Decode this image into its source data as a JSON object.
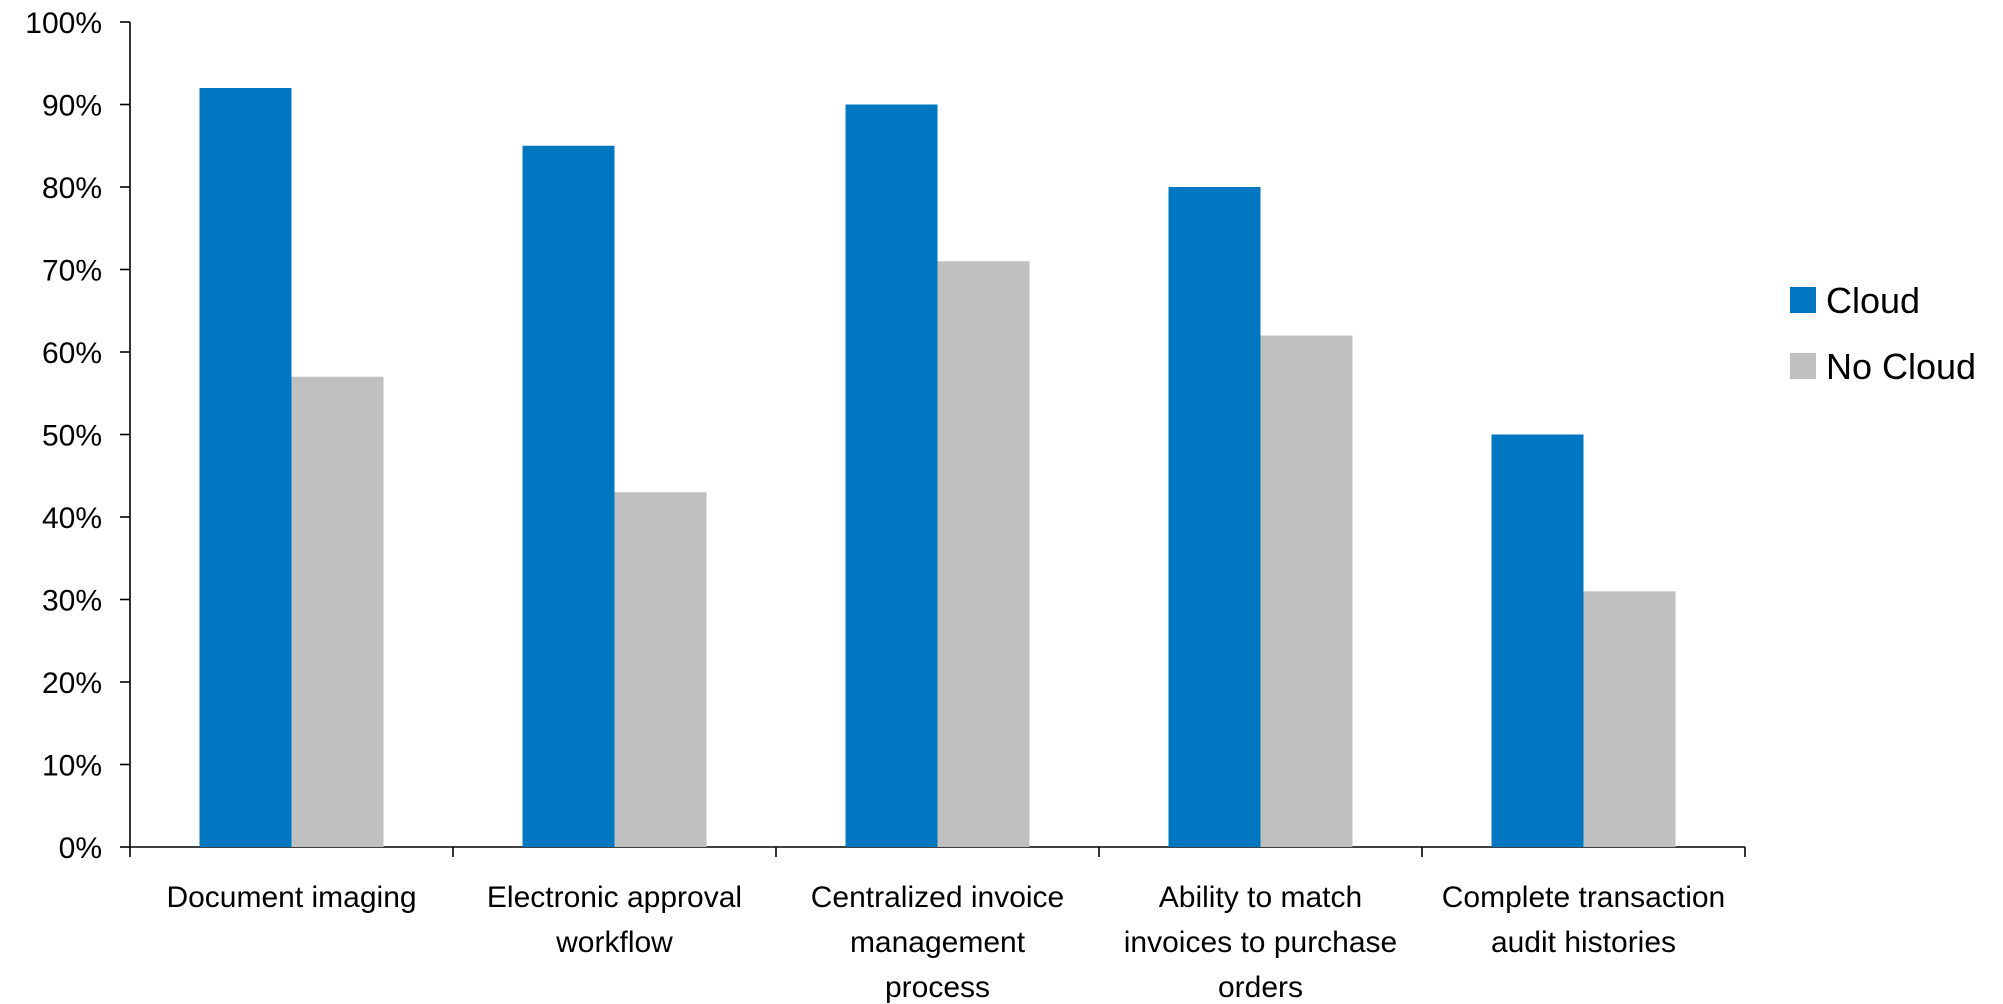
{
  "chart_data": {
    "type": "bar",
    "categories": [
      [
        "Document imaging"
      ],
      [
        "Electronic approval",
        "workflow"
      ],
      [
        "Centralized invoice",
        "management",
        "process"
      ],
      [
        "Ability to match",
        "invoices to purchase",
        "orders"
      ],
      [
        "Complete transaction",
        "audit histories"
      ]
    ],
    "series": [
      {
        "name": "Cloud",
        "color": "#0077C0",
        "values": [
          92,
          85,
          90,
          80,
          50
        ]
      },
      {
        "name": "No Cloud",
        "color": "#C0C0C0",
        "values": [
          57,
          43,
          71,
          62,
          31
        ]
      }
    ],
    "y_ticks": [
      "0%",
      "10%",
      "20%",
      "30%",
      "40%",
      "50%",
      "60%",
      "70%",
      "80%",
      "90%",
      "100%"
    ],
    "ylim": [
      0,
      100
    ],
    "grid": false,
    "legend_position": "right"
  }
}
